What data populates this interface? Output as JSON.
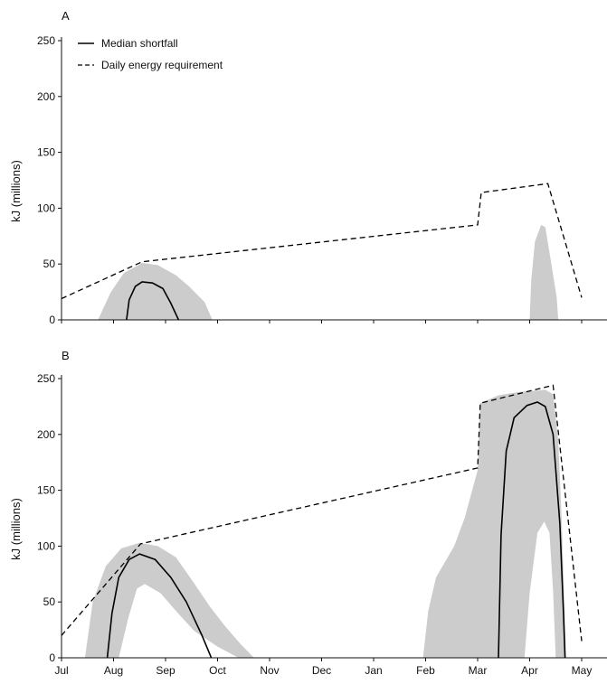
{
  "chart_data": [
    {
      "type": "line",
      "panel_label": "A",
      "ylabel": "kJ (millions)",
      "ylim": [
        0,
        250
      ],
      "yticks": [
        0,
        50,
        100,
        150,
        200,
        250
      ],
      "x_months": [
        "Jul",
        "Aug",
        "Sep",
        "Oct",
        "Nov",
        "Dec",
        "Jan",
        "Feb",
        "Mar",
        "Apr",
        "May"
      ],
      "legend": {
        "position": "top-left",
        "entries": [
          "Median shortfall",
          "Daily energy requirement"
        ]
      },
      "series": [
        {
          "name": "Daily energy requirement",
          "style": "dashed",
          "points": [
            [
              0,
              19
            ],
            [
              1.55,
              52
            ],
            [
              8.0,
              85
            ],
            [
              8.07,
              114
            ],
            [
              9.35,
              122
            ],
            [
              10.0,
              20
            ]
          ]
        },
        {
          "name": "Median shortfall",
          "style": "solid",
          "points": [
            [
              1.25,
              0
            ],
            [
              1.3,
              18
            ],
            [
              1.42,
              30
            ],
            [
              1.55,
              34
            ],
            [
              1.75,
              33
            ],
            [
              1.95,
              28
            ],
            [
              2.1,
              15
            ],
            [
              2.25,
              0
            ]
          ]
        }
      ],
      "bands": [
        {
          "color": "#cccccc",
          "points": [
            [
              0.7,
              0
            ],
            [
              0.95,
              25
            ],
            [
              1.2,
              42
            ],
            [
              1.55,
              51
            ],
            [
              1.85,
              49
            ],
            [
              2.2,
              40
            ],
            [
              2.45,
              30
            ],
            [
              2.75,
              16
            ],
            [
              2.9,
              0
            ]
          ]
        },
        {
          "color": "#cccccc",
          "points": [
            [
              9.0,
              0
            ],
            [
              9.03,
              35
            ],
            [
              9.1,
              70
            ],
            [
              9.22,
              85
            ],
            [
              9.3,
              83
            ],
            [
              9.4,
              55
            ],
            [
              9.52,
              20
            ],
            [
              9.55,
              0
            ]
          ]
        }
      ]
    },
    {
      "type": "line",
      "panel_label": "B",
      "ylabel": "kJ (millions)",
      "ylim": [
        0,
        250
      ],
      "yticks": [
        0,
        50,
        100,
        150,
        200,
        250
      ],
      "x_months": [
        "Jul",
        "Aug",
        "Sep",
        "Oct",
        "Nov",
        "Dec",
        "Jan",
        "Feb",
        "Mar",
        "Apr",
        "May"
      ],
      "series": [
        {
          "name": "Daily energy requirement",
          "style": "dashed",
          "points": [
            [
              0,
              20
            ],
            [
              1.52,
              102
            ],
            [
              8.0,
              170
            ],
            [
              8.05,
              228
            ],
            [
              9.45,
              244
            ],
            [
              10.0,
              15
            ]
          ]
        },
        {
          "name": "Median shortfall",
          "style": "solid",
          "points": [
            [
              0.88,
              0
            ],
            [
              0.97,
              40
            ],
            [
              1.1,
              72
            ],
            [
              1.3,
              88
            ],
            [
              1.5,
              93
            ],
            [
              1.8,
              88
            ],
            [
              2.1,
              72
            ],
            [
              2.4,
              50
            ],
            [
              2.7,
              20
            ],
            [
              2.88,
              0
            ]
          ]
        },
        {
          "name": "Median shortfall",
          "style": "solid",
          "points": [
            [
              8.4,
              0
            ],
            [
              8.45,
              110
            ],
            [
              8.55,
              185
            ],
            [
              8.7,
              215
            ],
            [
              8.95,
              226
            ],
            [
              9.15,
              229
            ],
            [
              9.3,
              225
            ],
            [
              9.45,
              200
            ],
            [
              9.58,
              120
            ],
            [
              9.65,
              40
            ],
            [
              9.68,
              0
            ]
          ]
        }
      ],
      "bands": [
        {
          "color": "#cccccc",
          "points": [
            [
              0.45,
              0
            ],
            [
              0.6,
              50
            ],
            [
              0.85,
              82
            ],
            [
              1.15,
              98
            ],
            [
              1.5,
              103
            ],
            [
              1.85,
              100
            ],
            [
              2.2,
              90
            ],
            [
              2.5,
              70
            ],
            [
              2.85,
              46
            ],
            [
              3.15,
              28
            ],
            [
              3.45,
              12
            ],
            [
              3.7,
              0
            ],
            [
              3.4,
              0
            ],
            [
              3.0,
              10
            ],
            [
              2.55,
              24
            ],
            [
              2.2,
              42
            ],
            [
              1.9,
              58
            ],
            [
              1.6,
              66
            ],
            [
              1.45,
              62
            ],
            [
              1.28,
              35
            ],
            [
              1.1,
              0
            ]
          ]
        },
        {
          "color": "#cccccc",
          "points": [
            [
              6.95,
              0
            ],
            [
              7.05,
              42
            ],
            [
              7.2,
              72
            ],
            [
              7.4,
              88
            ],
            [
              7.55,
              100
            ],
            [
              7.75,
              125
            ],
            [
              8.0,
              168
            ],
            [
              8.05,
              228
            ],
            [
              8.4,
              235
            ],
            [
              8.8,
              238
            ],
            [
              9.3,
              240
            ],
            [
              9.45,
              236
            ],
            [
              9.55,
              195
            ],
            [
              9.62,
              120
            ],
            [
              9.7,
              0
            ],
            [
              9.5,
              0
            ],
            [
              9.45,
              60
            ],
            [
              9.38,
              112
            ],
            [
              9.28,
              122
            ],
            [
              9.15,
              112
            ],
            [
              9.0,
              58
            ],
            [
              8.9,
              0
            ]
          ]
        }
      ]
    }
  ]
}
